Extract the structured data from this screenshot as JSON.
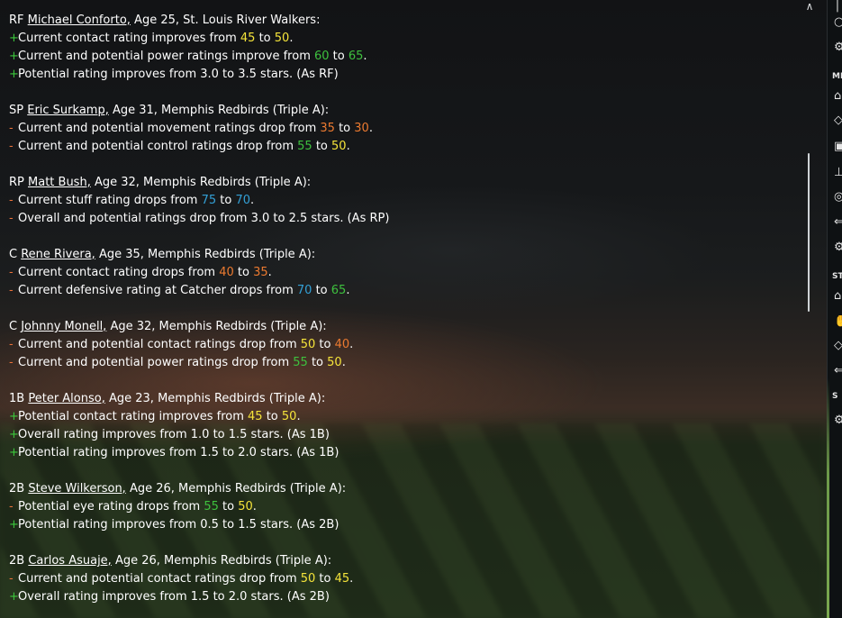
{
  "sidebar": {
    "labels": [
      "MI",
      "ST",
      "S"
    ]
  },
  "entries": [
    {
      "pos": "RF",
      "name": "Michael Conforto,",
      "info": " Age 25, St. Louis River Walkers:",
      "lines": [
        {
          "sign": "+",
          "text": "Current contact rating improves from ",
          "v1": "45",
          "c1": "yellow",
          "mid": " to ",
          "v2": "50",
          "c2": "yellow",
          "end": "."
        },
        {
          "sign": "+",
          "text": "Current and potential power ratings improve from ",
          "v1": "60",
          "c1": "green",
          "mid": " to ",
          "v2": "65",
          "c2": "green",
          "end": "."
        },
        {
          "sign": "+",
          "text": "Potential rating improves from 3.0 to 3.5 stars. (As RF)"
        }
      ]
    },
    {
      "pos": "SP",
      "name": "Eric Surkamp,",
      "info": " Age 31, Memphis Redbirds (Triple A):",
      "lines": [
        {
          "sign": "-",
          "text": "Current and potential movement ratings drop from ",
          "v1": "35",
          "c1": "orange",
          "mid": " to ",
          "v2": "30",
          "c2": "orange",
          "end": "."
        },
        {
          "sign": "-",
          "text": "Current and potential control ratings drop from ",
          "v1": "55",
          "c1": "green",
          "mid": " to ",
          "v2": "50",
          "c2": "yellow",
          "end": "."
        }
      ]
    },
    {
      "pos": "RP",
      "name": "Matt Bush,",
      "info": " Age 32, Memphis Redbirds (Triple A):",
      "lines": [
        {
          "sign": "-",
          "text": "Current stuff rating drops from ",
          "v1": "75",
          "c1": "blue",
          "mid": " to ",
          "v2": "70",
          "c2": "blue",
          "end": "."
        },
        {
          "sign": "-",
          "text": "Overall and potential ratings drop from 3.0 to 2.5 stars. (As RP)"
        }
      ]
    },
    {
      "pos": "C",
      "name": "Rene Rivera,",
      "info": " Age 35, Memphis Redbirds (Triple A):",
      "lines": [
        {
          "sign": "-",
          "text": "Current contact rating drops from ",
          "v1": "40",
          "c1": "orange",
          "mid": " to ",
          "v2": "35",
          "c2": "orange",
          "end": "."
        },
        {
          "sign": "-",
          "text": "Current defensive rating at Catcher drops from ",
          "v1": "70",
          "c1": "blue",
          "mid": " to ",
          "v2": "65",
          "c2": "green",
          "end": "."
        }
      ]
    },
    {
      "pos": "C",
      "name": "Johnny Monell,",
      "info": " Age 32, Memphis Redbirds (Triple A):",
      "lines": [
        {
          "sign": "-",
          "text": "Current and potential contact ratings drop from ",
          "v1": "50",
          "c1": "yellow",
          "mid": " to ",
          "v2": "40",
          "c2": "orange",
          "end": "."
        },
        {
          "sign": "-",
          "text": "Current and potential power ratings drop from ",
          "v1": "55",
          "c1": "green",
          "mid": " to ",
          "v2": "50",
          "c2": "yellow",
          "end": "."
        }
      ]
    },
    {
      "pos": "1B",
      "name": "Peter Alonso,",
      "info": " Age 23, Memphis Redbirds (Triple A):",
      "lines": [
        {
          "sign": "+",
          "text": "Potential contact rating improves from ",
          "v1": "45",
          "c1": "yellow",
          "mid": " to ",
          "v2": "50",
          "c2": "yellow",
          "end": "."
        },
        {
          "sign": "+",
          "text": "Overall rating improves from 1.0 to 1.5 stars. (As 1B)"
        },
        {
          "sign": "+",
          "text": "Potential rating improves from 1.5 to 2.0 stars. (As 1B)"
        }
      ]
    },
    {
      "pos": "2B",
      "name": "Steve Wilkerson,",
      "info": " Age 26, Memphis Redbirds (Triple A):",
      "lines": [
        {
          "sign": "-",
          "text": "Potential eye rating drops from ",
          "v1": "55",
          "c1": "green",
          "mid": " to ",
          "v2": "50",
          "c2": "yellow",
          "end": "."
        },
        {
          "sign": "+",
          "text": "Potential rating improves from 0.5 to 1.5 stars. (As 2B)"
        }
      ]
    },
    {
      "pos": "2B",
      "name": "Carlos Asuaje,",
      "info": " Age 26, Memphis Redbirds (Triple A):",
      "lines": [
        {
          "sign": "-",
          "text": "Current and potential contact ratings drop from ",
          "v1": "50",
          "c1": "yellow",
          "mid": " to ",
          "v2": "45",
          "c2": "yellow",
          "end": "."
        },
        {
          "sign": "+",
          "text": "Overall rating improves from 1.5 to 2.0 stars. (As 2B)"
        }
      ]
    }
  ]
}
